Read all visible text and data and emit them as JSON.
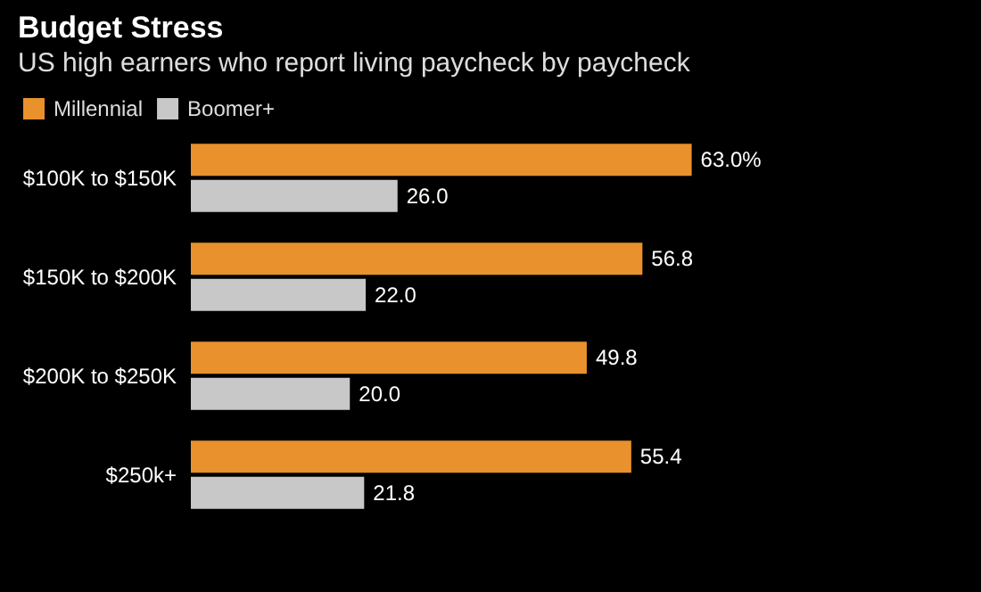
{
  "chart_data": {
    "type": "bar",
    "orientation": "horizontal",
    "title": "Budget Stress",
    "subtitle": "US high earners who report living paycheck by paycheck",
    "categories": [
      "$100K to $150K",
      "$150K to $200K",
      "$200K to $250K",
      "$250k+"
    ],
    "series": [
      {
        "name": "Millennial",
        "color": "#e8912d",
        "values": [
          63.0,
          56.8,
          49.8,
          55.4
        ],
        "value_labels": [
          "63.0%",
          "56.8",
          "49.8",
          "55.4"
        ]
      },
      {
        "name": "Boomer+",
        "color": "#c8c8c8",
        "values": [
          26.0,
          22.0,
          20.0,
          21.8
        ],
        "value_labels": [
          "26.0",
          "22.0",
          "20.0",
          "21.8"
        ]
      }
    ],
    "legend": "top left"
  }
}
